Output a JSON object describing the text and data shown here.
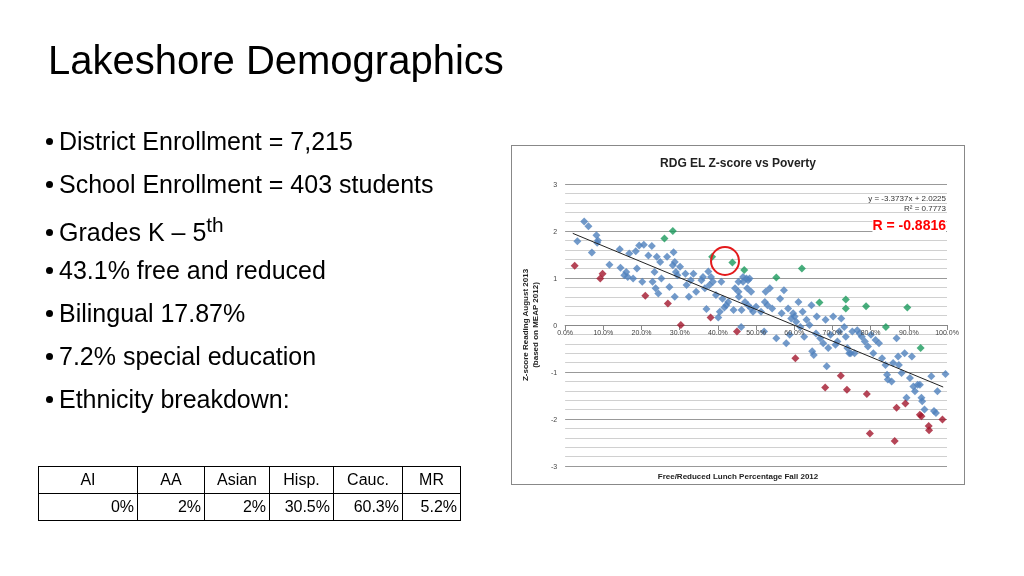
{
  "chart_data": [
    {
      "type": "other",
      "title": "Lakeshore Demographics",
      "annotations": [
        "District Enrollment = 7,215",
        "School Enrollment = 403 students",
        "Grades K – 5$^{th}$",
        "43.1% free and reduced",
        "Bilingual 17.87%",
        "7.2% special education",
        "Ethnicity breakdown:"
      ]
    },
    {
      "type": "scatter",
      "title": "RDG EL Z-score vs Poverty",
      "xlabel": "Free/Reduced Lunch Percentage Fall 2012",
      "ylabel": "Z-score Reading August 2013\n(based on MEAP 2012)",
      "xlim": [
        0,
        100
      ],
      "xticks": [
        {
          "value": 0,
          "label": "0.0%"
        },
        {
          "value": 10,
          "label": "10.0%"
        },
        {
          "value": 20,
          "label": "20.0%"
        },
        {
          "value": 30,
          "label": "30.0%"
        },
        {
          "value": 40,
          "label": "40.0%"
        },
        {
          "value": 50,
          "label": "50.0%"
        },
        {
          "value": 60,
          "label": "60.0%"
        },
        {
          "value": 70,
          "label": "70.0%"
        },
        {
          "value": 80,
          "label": "80.0%"
        },
        {
          "value": 90,
          "label": "90.0%"
        },
        {
          "value": 100,
          "label": "100.0%"
        }
      ],
      "ylim": [
        -3,
        3
      ],
      "yticks": [
        -3,
        -2,
        -1,
        0,
        1,
        2,
        3
      ],
      "grid": "y",
      "marker": "diamond",
      "series": [
        {
          "type": "scatter",
          "color": "#4f81bd",
          "x": [
            3.2,
            5.0,
            6.1,
            7.0,
            8.2,
            8.6,
            8.4,
            11.6,
            14.3,
            14.5,
            15.5,
            16.0,
            16.4,
            16.8,
            17.8,
            18.5,
            18.8,
            19.4,
            20.2,
            20.6,
            21.8,
            22.7,
            22.9,
            23.4,
            23.7,
            24.0,
            24.4,
            24.9,
            25.2,
            26.7,
            27.3,
            28.2,
            28.4,
            28.7,
            28.7,
            29.0,
            29.4,
            30.1,
            31.5,
            31.8,
            32.4,
            32.9,
            33.6,
            34.3,
            35.7,
            36.1,
            36.6,
            37.0,
            37.5,
            37.8,
            38.2,
            38.7,
            39.5,
            40.1,
            40.5,
            40.9,
            41.2,
            41.7,
            42.2,
            42.7,
            44.1,
            44.5,
            45.4,
            45.5,
            46.1,
            46.2,
            46.6,
            47.1,
            47.7,
            47.9,
            48.3,
            48.7,
            49.2,
            45.4,
            46.6,
            47.5,
            47.9,
            48.7,
            50.0,
            51.3,
            52.1,
            52.3,
            52.5,
            53.0,
            53.6,
            54.2,
            55.3,
            56.3,
            56.7,
            57.3,
            57.9,
            58.4,
            58.8,
            59.2,
            59.7,
            60.1,
            60.5,
            61.1,
            61.6,
            62.2,
            62.6,
            63.2,
            64.0,
            64.5,
            64.7,
            65.1,
            65.7,
            65.9,
            66.8,
            67.6,
            68.2,
            68.5,
            68.9,
            69.5,
            70.2,
            70.8,
            71.3,
            71.8,
            72.3,
            73.1,
            73.5,
            73.9,
            74.4,
            74.8,
            75.2,
            75.8,
            76.5,
            77.1,
            77.7,
            78.5,
            79.3,
            80.1,
            80.7,
            81.3,
            82.2,
            83.0,
            83.9,
            84.3,
            84.5,
            85.5,
            85.9,
            86.8,
            87.2,
            87.4,
            88.1,
            88.9,
            89.4,
            90.3,
            90.8,
            91.2,
            91.6,
            92.3,
            92.9,
            93.3,
            93.5,
            94.1,
            95.9,
            96.6,
            97.1,
            97.5,
            99.6
          ],
          "values": [
            1.78,
            2.2,
            2.1,
            1.54,
            1.91,
            1.8,
            1.75,
            1.28,
            1.61,
            1.22,
            1.06,
            1.13,
            1.02,
            1.52,
            0.99,
            1.57,
            1.2,
            1.69,
            0.92,
            1.71,
            1.48,
            1.68,
            0.92,
            1.13,
            0.78,
            1.45,
            0.67,
            1.34,
            0.99,
            1.45,
            0.81,
            1.27,
            1.55,
            1.34,
            0.6,
            1.13,
            1.06,
            1.24,
            1.09,
            0.85,
            0.6,
            0.95,
            1.09,
            0.71,
            0.95,
            1.02,
            0.78,
            0.34,
            1.14,
            0.85,
            1.02,
            0.92,
            0.64,
            0.16,
            0.28,
            0.92,
            0.56,
            0.37,
            0.42,
            0.49,
            0.32,
            0.78,
            0.71,
            0.6,
            -0.04,
            0.32,
            0.92,
            0.49,
            0.78,
            0.95,
            0.99,
            0.71,
            0.28,
            0.92,
            1.02,
            0.99,
            0.42,
            0.35,
            0.39,
            0.28,
            -0.14,
            0.49,
            0.71,
            0.42,
            0.78,
            0.35,
            -0.28,
            0.56,
            0.25,
            0.74,
            -0.39,
            0.35,
            -0.21,
            0.14,
            0.25,
            0.18,
            0.07,
            0.49,
            -0.04,
            0.28,
            -0.25,
            0.11,
            0.0,
            0.42,
            -0.56,
            -0.64,
            -0.18,
            0.18,
            -0.28,
            -0.39,
            0.11,
            -0.88,
            -0.49,
            -0.21,
            0.18,
            -0.42,
            -0.35,
            -0.14,
            0.14,
            -0.04,
            -0.25,
            -0.49,
            -0.6,
            -0.6,
            -0.14,
            -0.6,
            -0.11,
            -0.18,
            -0.25,
            -0.35,
            -0.46,
            -0.21,
            -0.6,
            -0.32,
            -0.39,
            -0.71,
            -0.85,
            -1.06,
            -1.16,
            -1.2,
            -0.81,
            -0.28,
            -0.67,
            -0.85,
            -1.02,
            -0.6,
            -1.55,
            -1.13,
            -0.67,
            -1.31,
            -1.41,
            -1.27,
            -1.27,
            -1.55,
            -1.62,
            -1.8,
            -1.09,
            -1.83,
            -1.87,
            -1.41,
            -1.04
          ]
        },
        {
          "type": "scatter",
          "color": "#a3172d",
          "x": [
            2.5,
            9.2,
            9.8,
            21.0,
            26.9,
            30.3,
            38.1,
            45.0,
            60.3,
            72.2,
            68.1,
            73.8,
            79.0,
            79.8,
            86.3,
            86.8,
            89.1,
            92.9,
            93.3,
            95.2,
            95.3,
            98.8
          ],
          "values": [
            1.26,
            0.99,
            1.09,
            0.62,
            0.46,
            0.0,
            0.16,
            -0.14,
            -0.71,
            -1.08,
            -1.33,
            -1.38,
            -1.47,
            -2.31,
            -2.47,
            -1.76,
            -1.67,
            -1.91,
            -1.94,
            -2.15,
            -2.24,
            -2.01
          ]
        },
        {
          "type": "scatter",
          "color": "#1a9a5c",
          "x": [
            26.0,
            28.2,
            38.5,
            43.8,
            46.9,
            55.3,
            62.0,
            66.6,
            73.5,
            73.5,
            78.8,
            84.0,
            89.6,
            93.1
          ],
          "values": [
            1.84,
            2.0,
            1.45,
            1.33,
            1.17,
            1.01,
            1.2,
            0.48,
            0.54,
            0.35,
            0.4,
            -0.04,
            0.37,
            -0.49
          ]
        },
        {
          "type": "line",
          "color": "#222222",
          "marker": "none",
          "x": [
            2,
            99
          ],
          "values": [
            1.95,
            -1.32
          ]
        }
      ],
      "annotations": [
        "y = -3.3737x + 2.0225",
        "R² = 0.7773",
        "R = -0.8816"
      ]
    },
    {
      "type": "other",
      "categories": [
        "AI",
        "AA",
        "Asian",
        "Hisp.",
        "Cauc.",
        "MR"
      ],
      "value_labels": [
        "0%",
        "2%",
        "2%",
        "30.5%",
        "60.3%",
        "5.2%"
      ]
    }
  ]
}
